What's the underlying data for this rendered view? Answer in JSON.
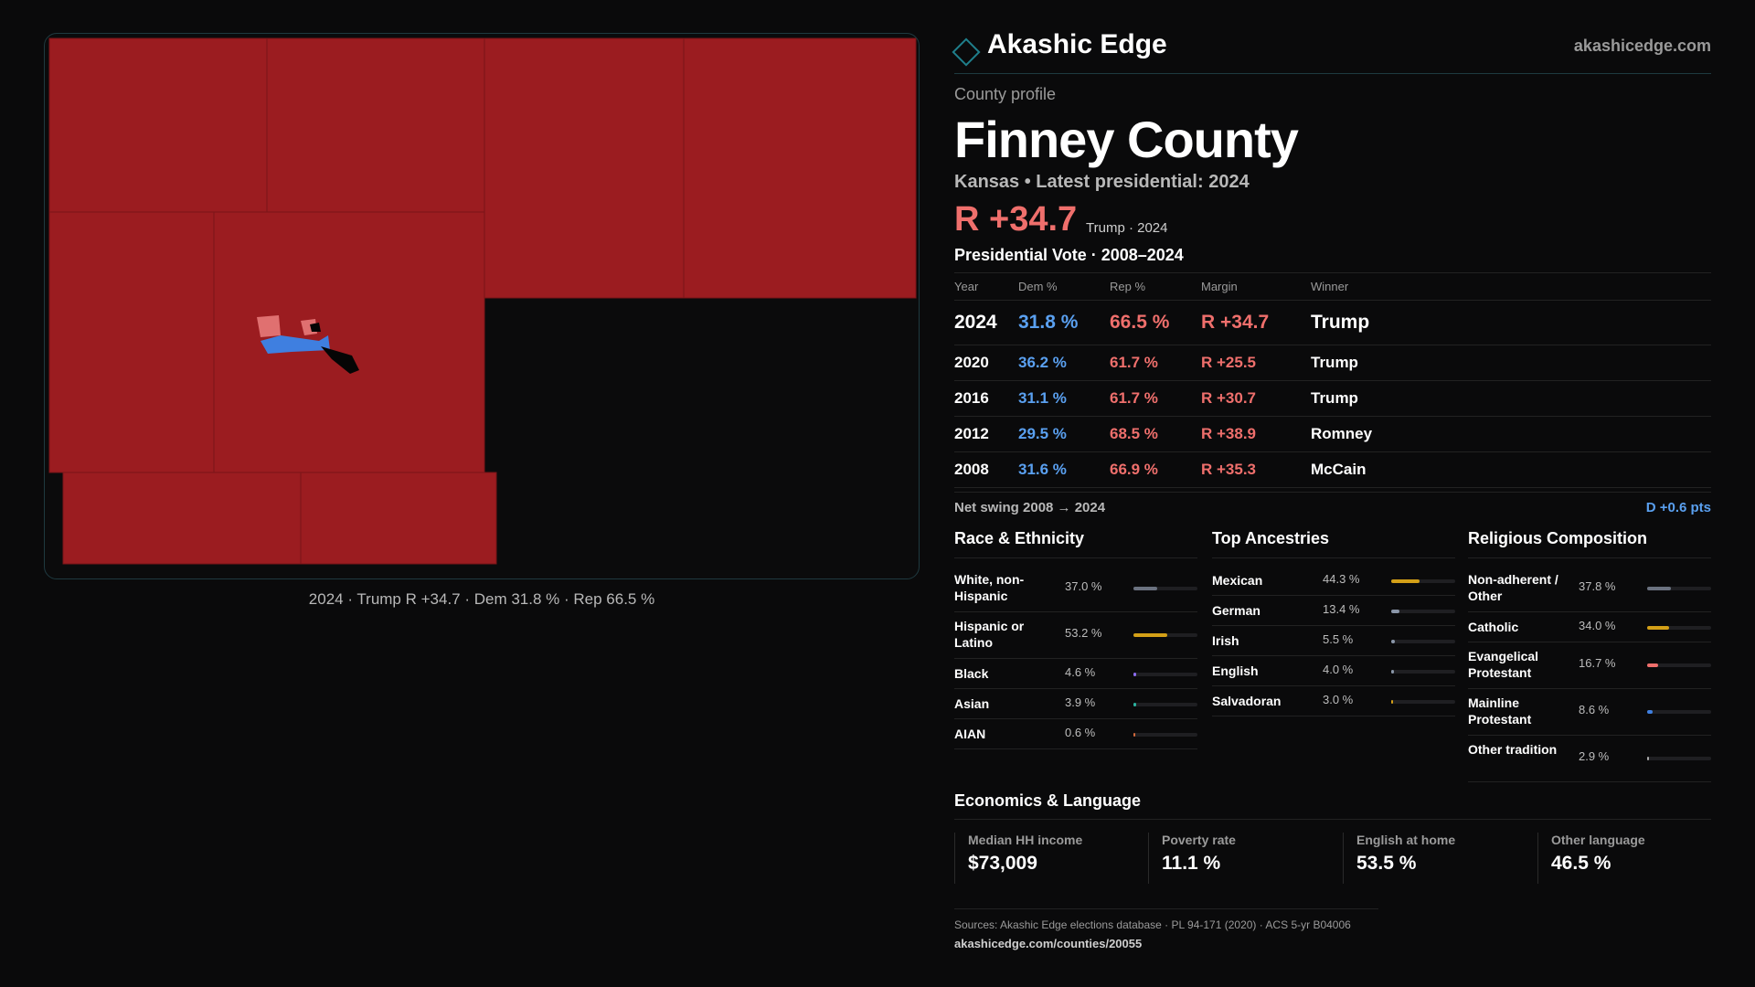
{
  "map": {
    "caption": "2024 · Trump R +34.7 · Dem 31.8 % · Rep 66.5 %",
    "colors": {
      "republican": "#9b1c20",
      "democratic": "#3f7fe0",
      "lean_rep": "#e07070",
      "unknown": "#050505"
    }
  },
  "brand": {
    "name": "Akashic Edge",
    "url": "akashicedge.com"
  },
  "profile": {
    "eyebrow": "County profile",
    "county": "Finney County",
    "subline": "Kansas • Latest presidential: 2024",
    "headline_margin": "R +34.7",
    "headline_note": "Trump · 2024"
  },
  "presidential": {
    "title": "Presidential Vote · 2008–2024",
    "headers": [
      "Year",
      "Dem %",
      "Rep %",
      "Margin",
      "Winner"
    ],
    "rows": [
      {
        "year": "2024",
        "dem": "31.8 %",
        "rep": "66.5 %",
        "margin": "R +34.7",
        "winner": "Trump"
      },
      {
        "year": "2020",
        "dem": "36.2 %",
        "rep": "61.7 %",
        "margin": "R +25.5",
        "winner": "Trump"
      },
      {
        "year": "2016",
        "dem": "31.1 %",
        "rep": "61.7 %",
        "margin": "R +30.7",
        "winner": "Trump"
      },
      {
        "year": "2012",
        "dem": "29.5 %",
        "rep": "68.5 %",
        "margin": "R +38.9",
        "winner": "Romney"
      },
      {
        "year": "2008",
        "dem": "31.6 %",
        "rep": "66.9 %",
        "margin": "R +35.3",
        "winner": "McCain"
      }
    ]
  },
  "swing": {
    "label": "Net swing 2008 → 2024",
    "value": "D +0.6 pts"
  },
  "race": {
    "title": "Race & Ethnicity",
    "items": [
      {
        "label": "White, non-Hispanic",
        "pct": "37.0 %",
        "value": 37.0,
        "color": "#6b7280"
      },
      {
        "label": "Hispanic or Latino",
        "pct": "53.2 %",
        "value": 53.2,
        "color": "#d4a017"
      },
      {
        "label": "Black",
        "pct": "4.6 %",
        "value": 4.6,
        "color": "#8b6cf0"
      },
      {
        "label": "Asian",
        "pct": "3.9 %",
        "value": 3.9,
        "color": "#2bb3a0"
      },
      {
        "label": "AIAN",
        "pct": "0.6 %",
        "value": 0.6,
        "color": "#d46a3c"
      }
    ]
  },
  "ancestry": {
    "title": "Top Ancestries",
    "items": [
      {
        "label": "Mexican",
        "pct": "44.3 %",
        "value": 44.3,
        "color": "#d4a017"
      },
      {
        "label": "German",
        "pct": "13.4 %",
        "value": 13.4,
        "color": "#8a96a8"
      },
      {
        "label": "Irish",
        "pct": "5.5 %",
        "value": 5.5,
        "color": "#8a96a8"
      },
      {
        "label": "English",
        "pct": "4.0 %",
        "value": 4.0,
        "color": "#8a96a8"
      },
      {
        "label": "Salvadoran",
        "pct": "3.0 %",
        "value": 3.0,
        "color": "#d4a017"
      }
    ]
  },
  "religion": {
    "title": "Religious Composition",
    "items": [
      {
        "label": "Non-adherent / Other",
        "pct": "37.8 %",
        "value": 37.8,
        "color": "#6b7280"
      },
      {
        "label": "Catholic",
        "pct": "34.0 %",
        "value": 34.0,
        "color": "#d4a017"
      },
      {
        "label": "Evangelical Protestant",
        "pct": "16.7 %",
        "value": 16.7,
        "color": "#ef6f6c"
      },
      {
        "label": "Mainline Protestant",
        "pct": "8.6 %",
        "value": 8.6,
        "color": "#3f7fe0"
      },
      {
        "label": "Other tradition",
        "pct": "2.9 %",
        "value": 2.9,
        "color": "#aaaaaa"
      }
    ]
  },
  "economics": {
    "title": "Economics & Language",
    "cells": [
      {
        "label": "Median HH income",
        "value": "$73,009"
      },
      {
        "label": "Poverty rate",
        "value": "11.1 %"
      },
      {
        "label": "English at home",
        "value": "53.5 %"
      },
      {
        "label": "Other language",
        "value": "46.5 %"
      }
    ]
  },
  "sources": {
    "line": "Sources: Akashic Edge elections database · PL 94-171 (2020) · ACS 5-yr B04006",
    "url": "akashicedge.com/counties/20055"
  }
}
